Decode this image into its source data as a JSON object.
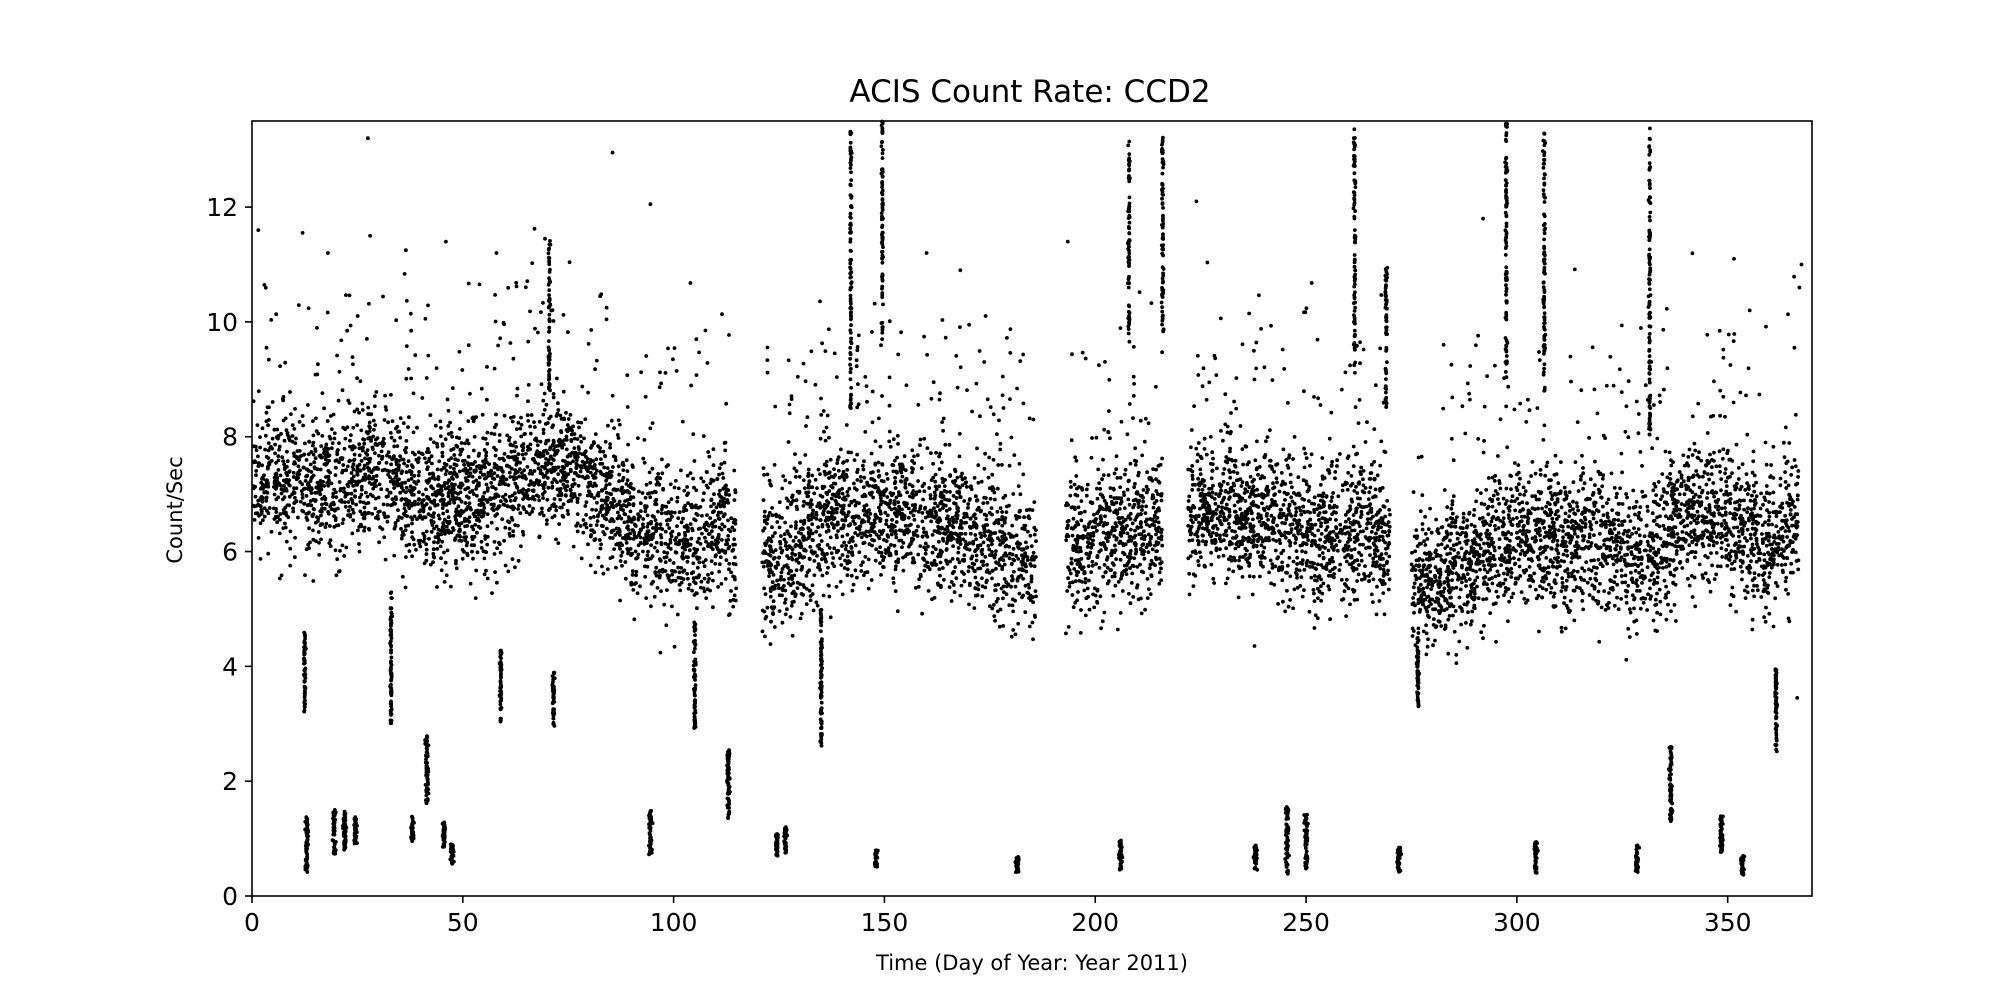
{
  "chart_data": {
    "type": "scatter",
    "title": "ACIS Count Rate: CCD2",
    "xlabel": "Time (Day of Year: Year 2011)",
    "ylabel": "Count/Sec",
    "xlim": [
      0,
      370
    ],
    "ylim": [
      0,
      13.5
    ],
    "xticks": [
      0,
      50,
      100,
      150,
      200,
      250,
      300,
      350
    ],
    "yticks": [
      0,
      2,
      4,
      6,
      8,
      10,
      12
    ],
    "grid": false,
    "marker_color": "#000000",
    "main_band": [
      [
        0,
        7.2
      ],
      [
        10,
        7.4
      ],
      [
        20,
        7.0
      ],
      [
        30,
        7.6
      ],
      [
        40,
        6.8
      ],
      [
        50,
        6.9
      ],
      [
        60,
        7.1
      ],
      [
        70,
        7.6
      ],
      [
        80,
        7.2
      ],
      [
        90,
        6.5
      ],
      [
        100,
        6.1
      ],
      [
        110,
        6.4
      ],
      [
        125,
        5.8
      ],
      [
        135,
        6.6
      ],
      [
        150,
        6.7
      ],
      [
        160,
        6.5
      ],
      [
        170,
        6.3
      ],
      [
        180,
        5.9
      ],
      [
        195,
        6.1
      ],
      [
        210,
        6.3
      ],
      [
        225,
        6.7
      ],
      [
        240,
        6.6
      ],
      [
        255,
        6.2
      ],
      [
        265,
        6.4
      ],
      [
        278,
        5.4
      ],
      [
        290,
        5.9
      ],
      [
        300,
        6.3
      ],
      [
        310,
        6.1
      ],
      [
        320,
        6.2
      ],
      [
        330,
        5.9
      ],
      [
        340,
        6.7
      ],
      [
        350,
        6.6
      ],
      [
        360,
        6.1
      ],
      [
        366,
        6.6
      ]
    ],
    "gaps": [
      [
        115,
        121
      ],
      [
        186,
        193
      ],
      [
        216,
        222
      ],
      [
        270,
        275
      ]
    ],
    "low_clusters": [
      {
        "x": 13,
        "y_min": 0.4,
        "y_max": 1.4
      },
      {
        "x": 19.5,
        "y_min": 0.7,
        "y_max": 1.5
      },
      {
        "x": 22,
        "y_min": 0.8,
        "y_max": 1.5
      },
      {
        "x": 24.5,
        "y_min": 0.9,
        "y_max": 1.4
      },
      {
        "x": 38,
        "y_min": 0.95,
        "y_max": 1.4
      },
      {
        "x": 41.5,
        "y_min": 1.6,
        "y_max": 2.8
      },
      {
        "x": 45.5,
        "y_min": 0.85,
        "y_max": 1.3
      },
      {
        "x": 47.5,
        "y_min": 0.55,
        "y_max": 0.9
      },
      {
        "x": 94.5,
        "y_min": 0.7,
        "y_max": 1.5
      },
      {
        "x": 113,
        "y_min": 1.35,
        "y_max": 2.55
      },
      {
        "x": 124.5,
        "y_min": 0.7,
        "y_max": 1.1
      },
      {
        "x": 126.5,
        "y_min": 0.75,
        "y_max": 1.2
      },
      {
        "x": 148,
        "y_min": 0.5,
        "y_max": 0.8
      },
      {
        "x": 181.5,
        "y_min": 0.4,
        "y_max": 0.7
      },
      {
        "x": 206,
        "y_min": 0.45,
        "y_max": 1.0
      },
      {
        "x": 238,
        "y_min": 0.45,
        "y_max": 0.9
      },
      {
        "x": 245.5,
        "y_min": 0.35,
        "y_max": 1.55
      },
      {
        "x": 250,
        "y_min": 0.45,
        "y_max": 1.45
      },
      {
        "x": 272,
        "y_min": 0.4,
        "y_max": 0.85
      },
      {
        "x": 304.5,
        "y_min": 0.4,
        "y_max": 0.95
      },
      {
        "x": 328.5,
        "y_min": 0.4,
        "y_max": 0.9
      },
      {
        "x": 336.5,
        "y_min": 1.3,
        "y_max": 2.6
      },
      {
        "x": 348.5,
        "y_min": 0.75,
        "y_max": 1.4
      },
      {
        "x": 353.5,
        "y_min": 0.35,
        "y_max": 0.7
      }
    ],
    "dip_streaks": [
      {
        "x": 12.5,
        "y_min": 3.2,
        "y_max": 4.6
      },
      {
        "x": 33,
        "y_min": 3.0,
        "y_max": 5.3
      },
      {
        "x": 59,
        "y_min": 3.0,
        "y_max": 4.3
      },
      {
        "x": 71.5,
        "y_min": 2.9,
        "y_max": 3.9
      },
      {
        "x": 105,
        "y_min": 2.9,
        "y_max": 4.8
      },
      {
        "x": 135,
        "y_min": 2.6,
        "y_max": 5.0
      },
      {
        "x": 276.5,
        "y_min": 3.3,
        "y_max": 4.6
      },
      {
        "x": 361.5,
        "y_min": 2.45,
        "y_max": 4.0
      }
    ],
    "flare_streaks": [
      {
        "x": 142,
        "y_min": 8.5,
        "y_max": 13.4
      },
      {
        "x": 149.5,
        "y_min": 9.5,
        "y_max": 13.5
      },
      {
        "x": 208,
        "y_min": 9.6,
        "y_max": 13.2
      },
      {
        "x": 216,
        "y_min": 9.8,
        "y_max": 13.3
      },
      {
        "x": 261.5,
        "y_min": 9.0,
        "y_max": 13.4
      },
      {
        "x": 269,
        "y_min": 8.5,
        "y_max": 11.0
      },
      {
        "x": 297.5,
        "y_min": 9.0,
        "y_max": 13.5
      },
      {
        "x": 306.5,
        "y_min": 8.8,
        "y_max": 13.3
      },
      {
        "x": 331.5,
        "y_min": 8.0,
        "y_max": 13.5
      },
      {
        "x": 70.5,
        "y_min": 8.8,
        "y_max": 11.5
      }
    ],
    "outliers": [
      [
        27.5,
        13.2
      ],
      [
        85.5,
        12.95
      ],
      [
        94.5,
        12.05
      ],
      [
        193.5,
        11.4
      ],
      [
        224,
        12.1
      ],
      [
        1.5,
        11.6
      ],
      [
        12,
        11.55
      ],
      [
        18,
        11.2
      ],
      [
        28,
        11.5
      ],
      [
        36.5,
        11.25
      ],
      [
        46,
        11.4
      ],
      [
        58,
        11.2
      ],
      [
        69.5,
        11.45
      ],
      [
        160,
        11.2
      ],
      [
        168,
        10.9
      ],
      [
        292,
        11.8
      ],
      [
        351.5,
        11.1
      ],
      [
        367.5,
        11.0
      ],
      [
        366.5,
        3.45
      ],
      [
        367,
        10.6
      ]
    ]
  }
}
